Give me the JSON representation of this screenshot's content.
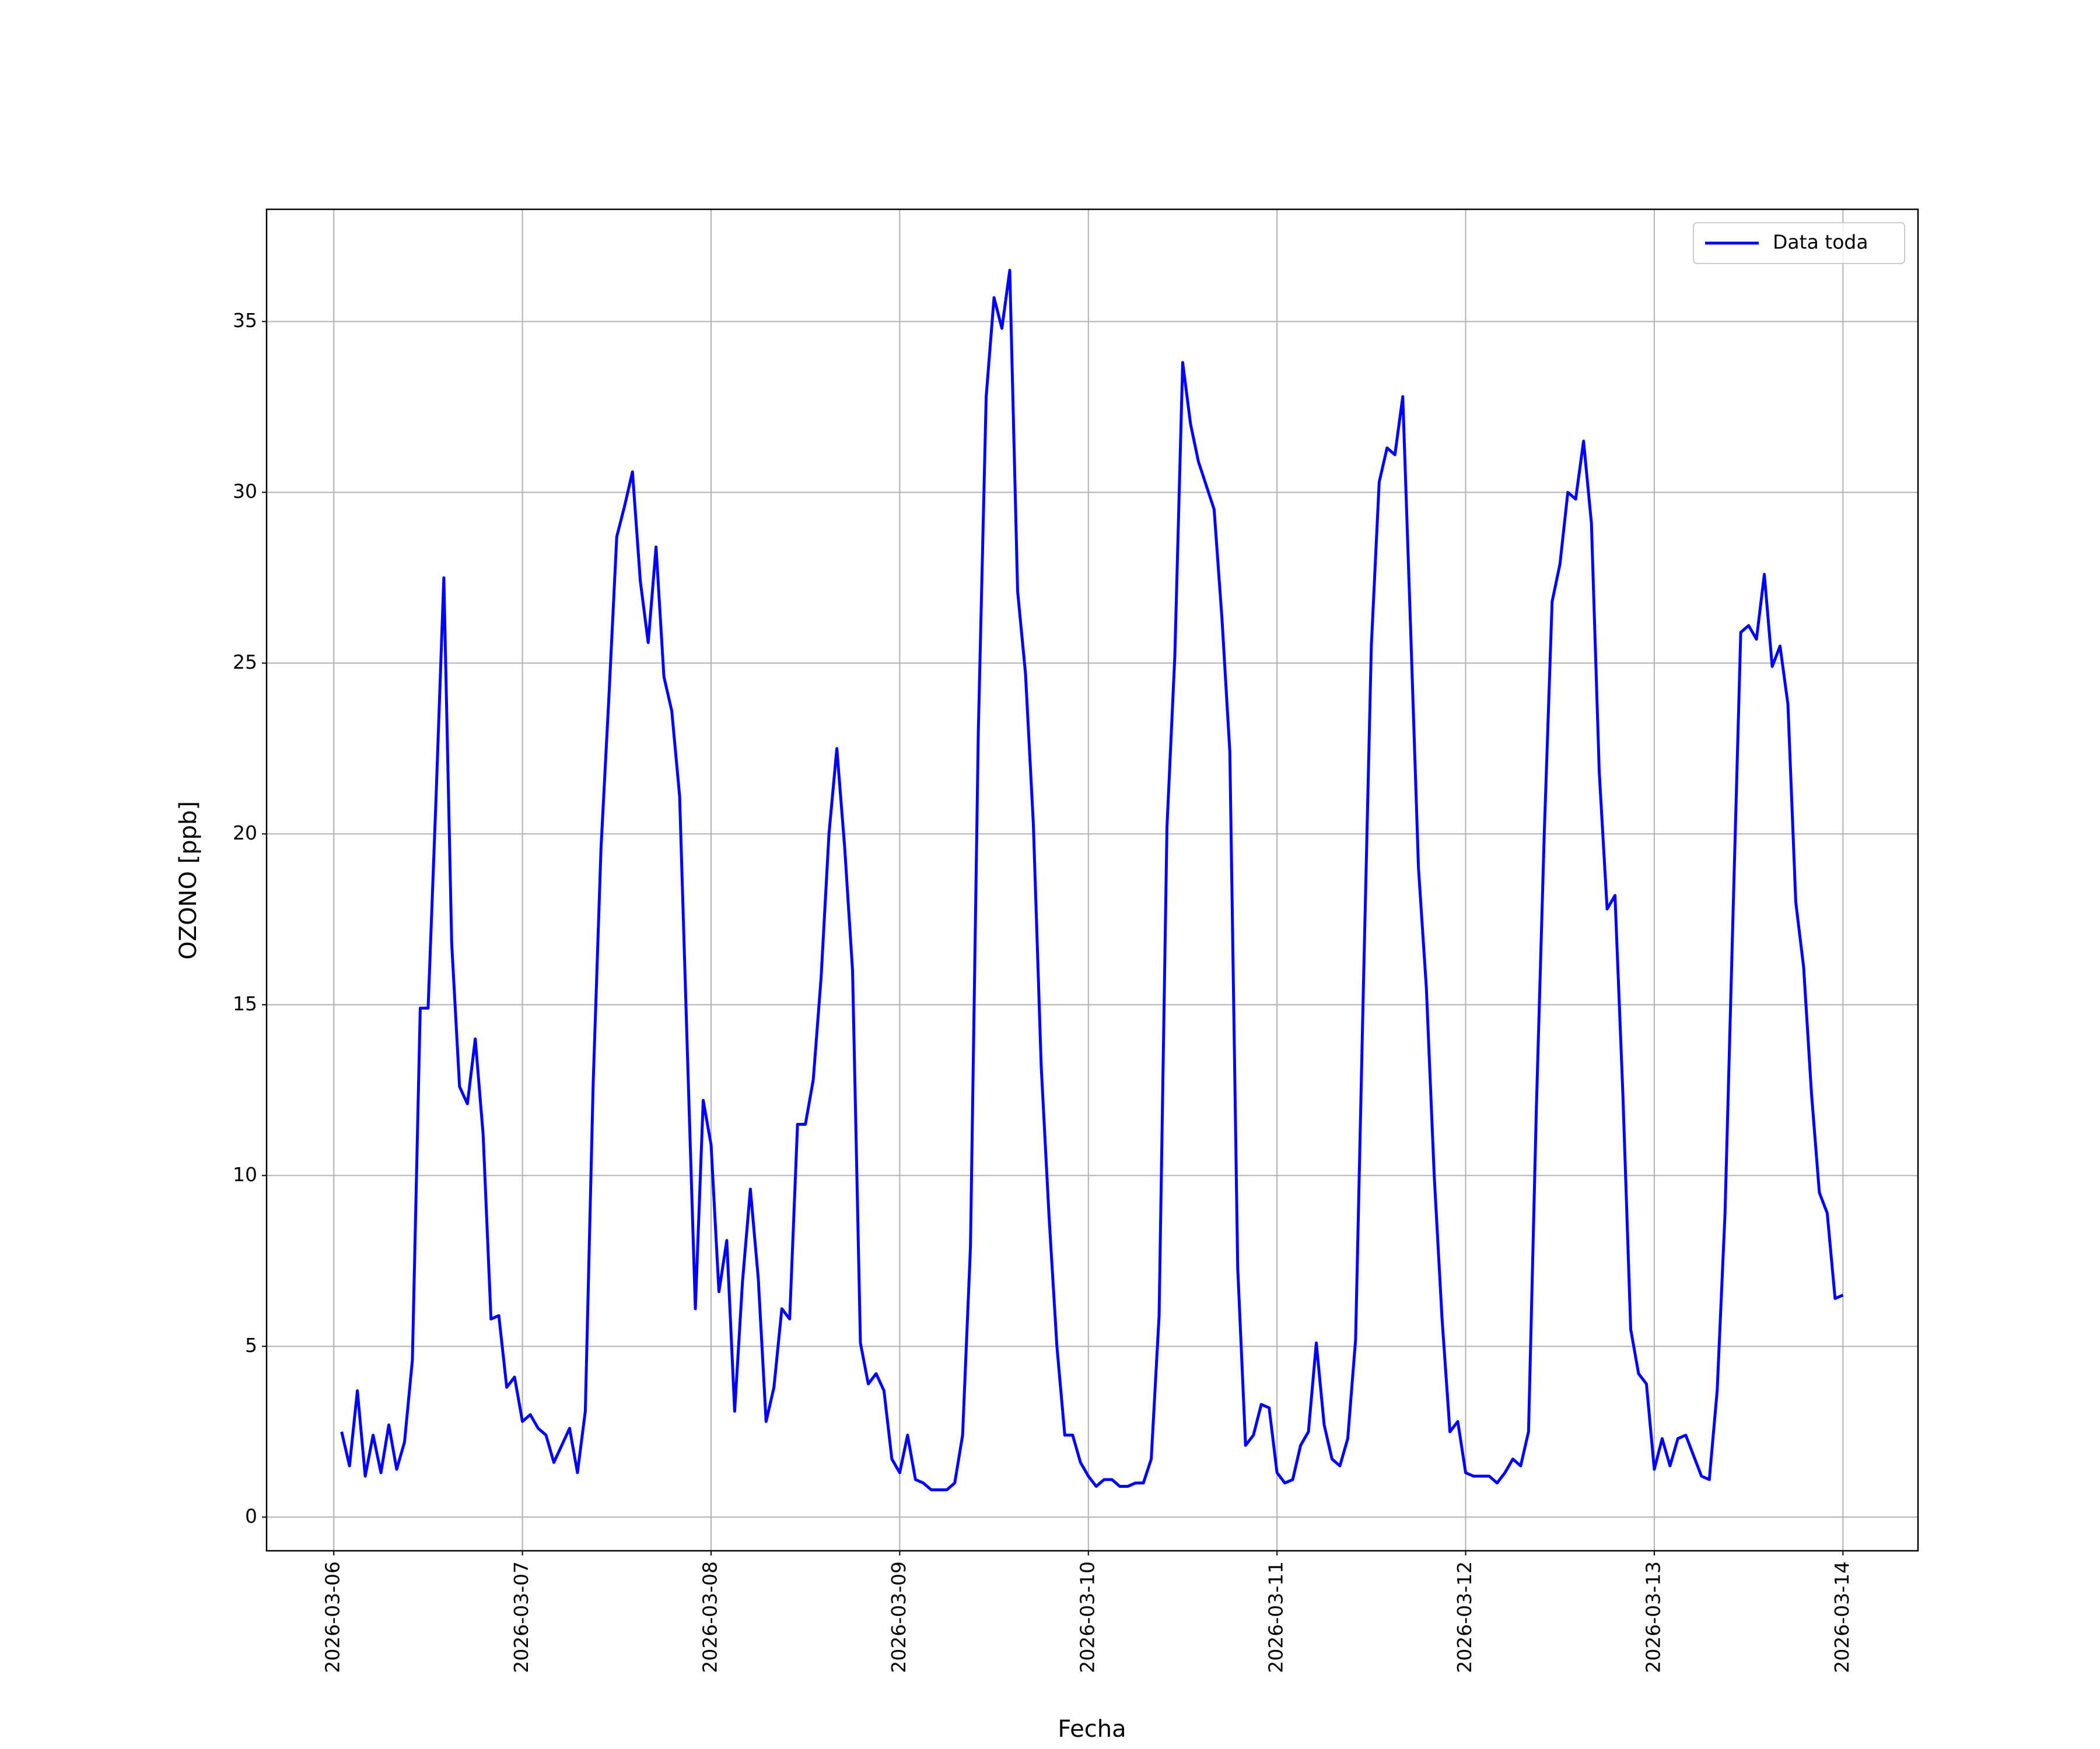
{
  "chart_data": {
    "type": "line",
    "xlabel": "Fecha",
    "ylabel": "OZONO [ppb]",
    "x": [
      "2026-03-06 01:00",
      "2026-03-06 02:00",
      "2026-03-06 03:00",
      "2026-03-06 04:00",
      "2026-03-06 05:00",
      "2026-03-06 06:00",
      "2026-03-06 07:00",
      "2026-03-06 08:00",
      "2026-03-06 09:00",
      "2026-03-06 10:00",
      "2026-03-06 11:00",
      "2026-03-06 12:00",
      "2026-03-06 13:00",
      "2026-03-06 14:00",
      "2026-03-06 15:00",
      "2026-03-06 16:00",
      "2026-03-06 17:00",
      "2026-03-06 18:00",
      "2026-03-06 19:00",
      "2026-03-06 20:00",
      "2026-03-06 21:00",
      "2026-03-06 22:00",
      "2026-03-06 23:00",
      "2026-03-07 00:00",
      "2026-03-07 01:00",
      "2026-03-07 02:00",
      "2026-03-07 03:00",
      "2026-03-07 04:00",
      "2026-03-07 05:00",
      "2026-03-07 06:00",
      "2026-03-07 07:00",
      "2026-03-07 08:00",
      "2026-03-07 09:00",
      "2026-03-07 10:00",
      "2026-03-07 11:00",
      "2026-03-07 12:00",
      "2026-03-07 13:00",
      "2026-03-07 14:00",
      "2026-03-07 15:00",
      "2026-03-07 16:00",
      "2026-03-07 17:00",
      "2026-03-07 18:00",
      "2026-03-07 19:00",
      "2026-03-07 20:00",
      "2026-03-07 21:00",
      "2026-03-07 22:00",
      "2026-03-07 23:00",
      "2026-03-08 00:00",
      "2026-03-08 01:00",
      "2026-03-08 02:00",
      "2026-03-08 03:00",
      "2026-03-08 04:00",
      "2026-03-08 05:00",
      "2026-03-08 06:00",
      "2026-03-08 07:00",
      "2026-03-08 08:00",
      "2026-03-08 09:00",
      "2026-03-08 10:00",
      "2026-03-08 11:00",
      "2026-03-08 12:00",
      "2026-03-08 13:00",
      "2026-03-08 14:00",
      "2026-03-08 15:00",
      "2026-03-08 16:00",
      "2026-03-08 17:00",
      "2026-03-08 18:00",
      "2026-03-08 19:00",
      "2026-03-08 20:00",
      "2026-03-08 21:00",
      "2026-03-08 22:00",
      "2026-03-08 23:00",
      "2026-03-09 00:00",
      "2026-03-09 01:00",
      "2026-03-09 02:00",
      "2026-03-09 03:00",
      "2026-03-09 04:00",
      "2026-03-09 05:00",
      "2026-03-09 06:00",
      "2026-03-09 07:00",
      "2026-03-09 08:00",
      "2026-03-09 09:00",
      "2026-03-09 10:00",
      "2026-03-09 11:00",
      "2026-03-09 12:00",
      "2026-03-09 13:00",
      "2026-03-09 14:00",
      "2026-03-09 15:00",
      "2026-03-09 16:00",
      "2026-03-09 17:00",
      "2026-03-09 18:00",
      "2026-03-09 19:00",
      "2026-03-09 20:00",
      "2026-03-09 21:00",
      "2026-03-09 22:00",
      "2026-03-09 23:00",
      "2026-03-10 00:00",
      "2026-03-10 01:00",
      "2026-03-10 02:00",
      "2026-03-10 03:00",
      "2026-03-10 04:00",
      "2026-03-10 05:00",
      "2026-03-10 06:00",
      "2026-03-10 07:00",
      "2026-03-10 08:00",
      "2026-03-10 09:00",
      "2026-03-10 10:00",
      "2026-03-10 11:00",
      "2026-03-10 12:00",
      "2026-03-10 13:00",
      "2026-03-10 14:00",
      "2026-03-10 15:00",
      "2026-03-10 16:00",
      "2026-03-10 17:00",
      "2026-03-10 18:00",
      "2026-03-10 19:00",
      "2026-03-10 20:00",
      "2026-03-10 21:00",
      "2026-03-10 22:00",
      "2026-03-10 23:00",
      "2026-03-11 00:00",
      "2026-03-11 01:00",
      "2026-03-11 02:00",
      "2026-03-11 03:00",
      "2026-03-11 04:00",
      "2026-03-11 05:00",
      "2026-03-11 06:00",
      "2026-03-11 07:00",
      "2026-03-11 08:00",
      "2026-03-11 09:00",
      "2026-03-11 10:00",
      "2026-03-11 11:00",
      "2026-03-11 12:00",
      "2026-03-11 13:00",
      "2026-03-11 14:00",
      "2026-03-11 15:00",
      "2026-03-11 16:00",
      "2026-03-11 17:00",
      "2026-03-11 18:00",
      "2026-03-11 19:00",
      "2026-03-11 20:00",
      "2026-03-11 21:00",
      "2026-03-11 22:00",
      "2026-03-11 23:00",
      "2026-03-12 00:00",
      "2026-03-12 01:00",
      "2026-03-12 02:00",
      "2026-03-12 03:00",
      "2026-03-12 04:00",
      "2026-03-12 05:00",
      "2026-03-12 06:00",
      "2026-03-12 07:00",
      "2026-03-12 08:00",
      "2026-03-12 09:00",
      "2026-03-12 10:00",
      "2026-03-12 11:00",
      "2026-03-12 12:00",
      "2026-03-12 13:00",
      "2026-03-12 14:00",
      "2026-03-12 15:00",
      "2026-03-12 16:00",
      "2026-03-12 17:00",
      "2026-03-12 18:00",
      "2026-03-12 19:00",
      "2026-03-12 20:00",
      "2026-03-12 21:00",
      "2026-03-12 22:00",
      "2026-03-12 23:00",
      "2026-03-13 00:00",
      "2026-03-13 01:00",
      "2026-03-13 02:00",
      "2026-03-13 03:00",
      "2026-03-13 04:00",
      "2026-03-13 05:00",
      "2026-03-13 06:00",
      "2026-03-13 07:00",
      "2026-03-13 08:00",
      "2026-03-13 09:00",
      "2026-03-13 10:00",
      "2026-03-13 11:00",
      "2026-03-13 12:00",
      "2026-03-13 13:00",
      "2026-03-13 14:00",
      "2026-03-13 15:00",
      "2026-03-13 16:00",
      "2026-03-13 17:00",
      "2026-03-13 18:00",
      "2026-03-13 19:00",
      "2026-03-13 20:00",
      "2026-03-13 21:00",
      "2026-03-13 22:00",
      "2026-03-13 23:00",
      "2026-03-14 00:00"
    ],
    "series": [
      {
        "name": "Data toda",
        "color": "#0000ff",
        "values": [
          2.5,
          1.5,
          3.7,
          1.2,
          2.4,
          1.3,
          2.7,
          1.4,
          2.2,
          4.6,
          14.9,
          14.9,
          21.0,
          27.5,
          16.8,
          12.6,
          12.1,
          14.0,
          11.2,
          5.8,
          5.9,
          3.8,
          4.1,
          2.8,
          3.0,
          2.6,
          2.4,
          1.6,
          2.1,
          2.6,
          1.3,
          3.1,
          12.7,
          19.6,
          24.0,
          28.7,
          29.6,
          30.6,
          27.4,
          25.6,
          28.4,
          24.6,
          23.6,
          21.1,
          13.5,
          6.1,
          12.2,
          10.9,
          6.6,
          8.1,
          3.1,
          6.9,
          9.6,
          7.0,
          2.8,
          3.8,
          6.1,
          5.8,
          11.5,
          11.5,
          12.8,
          15.8,
          20.0,
          22.5,
          19.6,
          16.0,
          5.1,
          3.9,
          4.2,
          3.7,
          1.7,
          1.3,
          2.4,
          1.1,
          1.0,
          0.8,
          0.8,
          0.8,
          1.0,
          2.4,
          7.9,
          23.0,
          32.8,
          35.7,
          34.8,
          36.5,
          27.1,
          24.7,
          20.3,
          13.2,
          8.8,
          5.0,
          2.4,
          2.4,
          1.6,
          1.2,
          0.9,
          1.1,
          1.1,
          0.9,
          0.9,
          1.0,
          1.0,
          1.7,
          5.9,
          20.2,
          25.2,
          33.8,
          32.0,
          30.9,
          30.2,
          29.5,
          26.3,
          22.4,
          7.3,
          2.1,
          2.4,
          3.3,
          3.2,
          1.3,
          1.0,
          1.1,
          2.1,
          2.5,
          5.1,
          2.7,
          1.7,
          1.5,
          2.3,
          5.2,
          15.6,
          25.5,
          30.3,
          31.3,
          31.1,
          32.8,
          26.0,
          19.0,
          15.5,
          10.0,
          5.8,
          2.5,
          2.8,
          1.3,
          1.2,
          1.2,
          1.2,
          1.0,
          1.3,
          1.7,
          1.5,
          2.5,
          12.0,
          20.0,
          26.8,
          27.9,
          30.0,
          29.8,
          31.5,
          29.1,
          21.8,
          17.8,
          18.2,
          12.4,
          5.5,
          4.2,
          3.9,
          1.4,
          2.3,
          1.5,
          2.3,
          2.4,
          1.8,
          1.2,
          1.1,
          3.7,
          8.9,
          17.5,
          25.9,
          26.1,
          25.7,
          27.6,
          24.9,
          25.5,
          23.8,
          18.0,
          16.1,
          12.4,
          9.5,
          8.9,
          6.4,
          6.5
        ]
      }
    ],
    "xlim": [
      "2026-03-05 15:27",
      "2026-03-14 09:33"
    ],
    "xticks": [
      "2026-03-06",
      "2026-03-07",
      "2026-03-08",
      "2026-03-09",
      "2026-03-10",
      "2026-03-11",
      "2026-03-12",
      "2026-03-13",
      "2026-03-14"
    ],
    "ylim": [
      -0.985,
      38.285
    ],
    "yticks": [
      0,
      5,
      10,
      15,
      20,
      25,
      30,
      35
    ],
    "grid": true,
    "legend": "upper right"
  }
}
